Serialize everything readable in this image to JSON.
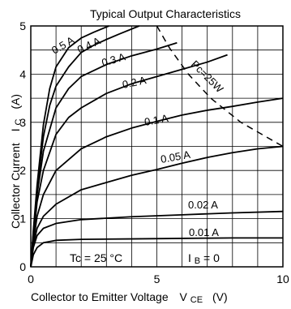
{
  "chart_data": {
    "type": "line",
    "title": "Typical Output Characteristics",
    "xlabel": "Collector to Emitter Voltage",
    "xlabel_symbol": "V",
    "xlabel_subscript": "CE",
    "xlabel_unit": "(V)",
    "ylabel": "Collector Current",
    "ylabel_symbol": "I",
    "ylabel_subscript": "C",
    "ylabel_unit": "(A)",
    "xlim": [
      0,
      10
    ],
    "ylim": [
      0,
      5
    ],
    "x_ticks": [
      "0",
      "5",
      "10"
    ],
    "y_ticks": [
      "0",
      "1",
      "2",
      "3",
      "4",
      "5"
    ],
    "grid": true,
    "series": [
      {
        "name": "0.01 A",
        "x": [
          0,
          0.1,
          0.25,
          0.5,
          1,
          2,
          4,
          6,
          8,
          10
        ],
        "y": [
          0,
          0.25,
          0.4,
          0.5,
          0.55,
          0.57,
          0.58,
          0.59,
          0.6,
          0.6
        ]
      },
      {
        "name": "0.02 A",
        "x": [
          0,
          0.1,
          0.25,
          0.5,
          1,
          2,
          4,
          6,
          8,
          10
        ],
        "y": [
          0,
          0.4,
          0.65,
          0.8,
          0.9,
          0.98,
          1.04,
          1.08,
          1.12,
          1.15
        ]
      },
      {
        "name": "0.05 A",
        "x": [
          0,
          0.1,
          0.25,
          0.5,
          1,
          2,
          3,
          4,
          5,
          6,
          7,
          8,
          9,
          10
        ],
        "y": [
          0,
          0.45,
          0.8,
          1.05,
          1.3,
          1.6,
          1.75,
          1.9,
          2.02,
          2.15,
          2.27,
          2.37,
          2.45,
          2.5
        ]
      },
      {
        "name": "0.1 A",
        "x": [
          0,
          0.1,
          0.25,
          0.5,
          1,
          2,
          3,
          4,
          5,
          6,
          7,
          8,
          9,
          10
        ],
        "y": [
          0,
          0.5,
          1.05,
          1.5,
          2.0,
          2.45,
          2.7,
          2.88,
          3.02,
          3.15,
          3.25,
          3.33,
          3.42,
          3.5
        ]
      },
      {
        "name": "0.2 A",
        "x": [
          0,
          0.1,
          0.25,
          0.5,
          1,
          1.5,
          2,
          3,
          4,
          5,
          6,
          7,
          7.8
        ],
        "y": [
          0,
          0.6,
          1.35,
          2.0,
          2.75,
          3.1,
          3.3,
          3.6,
          3.8,
          3.95,
          4.1,
          4.25,
          4.4
        ]
      },
      {
        "name": "0.3 A",
        "x": [
          0,
          0.1,
          0.25,
          0.5,
          1,
          1.5,
          2,
          3,
          4,
          5,
          5.8
        ],
        "y": [
          0,
          0.65,
          1.5,
          2.4,
          3.3,
          3.7,
          3.95,
          4.2,
          4.38,
          4.52,
          4.65
        ]
      },
      {
        "name": "0.4 A",
        "x": [
          0,
          0.1,
          0.25,
          0.5,
          0.75,
          1,
          1.5,
          2,
          2.5,
          3,
          3.5,
          4.3
        ],
        "y": [
          0,
          0.7,
          1.6,
          2.7,
          3.35,
          3.75,
          4.15,
          4.45,
          4.6,
          4.72,
          4.83,
          5.0
        ]
      },
      {
        "name": "0.5 A",
        "x": [
          0,
          0.1,
          0.25,
          0.5,
          0.75,
          1,
          1.5,
          2,
          2.5,
          3.1
        ],
        "y": [
          0,
          0.75,
          1.7,
          2.95,
          3.7,
          4.15,
          4.55,
          4.75,
          4.87,
          5.0
        ]
      }
    ],
    "annotations": {
      "tc": "Tc = 25 °C",
      "ib": "I",
      "ib_sub": "B",
      "ib_val": " = 0",
      "pc": "Pc=25W"
    },
    "limit_line": {
      "name": "Pc=25W",
      "x": [
        5,
        5.5,
        6.25,
        7.14,
        8.33,
        10
      ],
      "y": [
        5,
        4.545,
        4,
        3.5,
        3,
        2.5
      ]
    },
    "colors": {
      "curve": "#000000",
      "grid": "#000000",
      "limit": "#000000"
    }
  }
}
